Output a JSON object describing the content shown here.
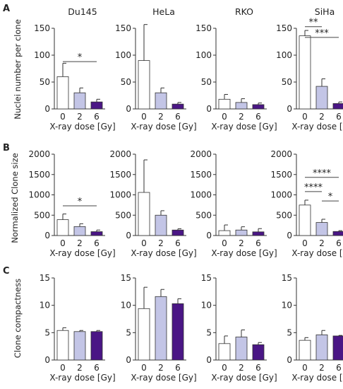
{
  "panel_letters": [
    "A",
    "B",
    "C"
  ],
  "colors": {
    "dose0": "#ffffff",
    "dose2": "#c3c5e6",
    "dose6": "#4a1685",
    "stroke": "#333333",
    "sig_line": "#444444"
  },
  "chart_data": [
    {
      "panel": "A",
      "type": "bar",
      "ylabel": "Nuclei number per clone",
      "ylim": [
        0,
        150
      ],
      "yticks": [
        0,
        50,
        100,
        150
      ],
      "xlabel": "X-ray dose [Gy]",
      "categories": [
        "0",
        "2",
        "6"
      ],
      "cells": [
        {
          "title": "Du145",
          "values": [
            60,
            30,
            13
          ],
          "errors": [
            25,
            9,
            5
          ],
          "significance": [
            {
              "from": 0,
              "to": 2,
              "label": "*",
              "y": 88
            }
          ]
        },
        {
          "title": "HeLa",
          "values": [
            90,
            30,
            9
          ],
          "errors": [
            67,
            9,
            3
          ],
          "significance": []
        },
        {
          "title": "RKO",
          "values": [
            18,
            12,
            8
          ],
          "errors": [
            9,
            7,
            3
          ],
          "significance": []
        },
        {
          "title": "SiHa",
          "values": [
            136,
            42,
            10
          ],
          "errors": [
            10,
            14,
            3
          ],
          "significance": [
            {
              "from": 0,
              "to": 1,
              "label": "**",
              "y": 153
            },
            {
              "from": 0,
              "to": 2,
              "label": "***",
              "y": 133
            }
          ]
        }
      ]
    },
    {
      "panel": "B",
      "type": "bar",
      "ylabel": "Normalized Clone size",
      "ylim": [
        0,
        2000
      ],
      "yticks": [
        0,
        500,
        1000,
        1500,
        2000
      ],
      "xlabel": "X-ray dose [Gy]",
      "categories": [
        "0",
        "2",
        "6"
      ],
      "cells": [
        {
          "title": "",
          "values": [
            390,
            220,
            95
          ],
          "errors": [
            140,
            70,
            40
          ],
          "significance": [
            {
              "from": 0,
              "to": 2,
              "label": "*",
              "y": 730
            }
          ]
        },
        {
          "title": "",
          "values": [
            1060,
            500,
            135
          ],
          "errors": [
            800,
            110,
            30
          ],
          "significance": []
        },
        {
          "title": "",
          "values": [
            120,
            135,
            90
          ],
          "errors": [
            140,
            80,
            80
          ],
          "significance": []
        },
        {
          "title": "",
          "values": [
            750,
            320,
            100
          ],
          "errors": [
            120,
            80,
            20
          ],
          "significance": [
            {
              "from": 0,
              "to": 2,
              "label": "****",
              "y": 1430
            },
            {
              "from": 0,
              "to": 1,
              "label": "****",
              "y": 1080
            },
            {
              "from": 1,
              "to": 2,
              "label": "*",
              "y": 850
            }
          ]
        }
      ]
    },
    {
      "panel": "C",
      "type": "bar",
      "ylabel": "Clone compactness",
      "ylim": [
        0,
        15
      ],
      "yticks": [
        0,
        5,
        10,
        15
      ],
      "xlabel": "X-ray dose [Gy]",
      "categories": [
        "0",
        "2",
        "6"
      ],
      "cells": [
        {
          "title": "",
          "values": [
            5.4,
            5.2,
            5.2
          ],
          "errors": [
            0.5,
            0.2,
            0.2
          ],
          "significance": []
        },
        {
          "title": "",
          "values": [
            9.4,
            11.6,
            10.3
          ],
          "errors": [
            3.9,
            1.3,
            0.9
          ],
          "significance": []
        },
        {
          "title": "",
          "values": [
            3.0,
            4.2,
            2.8
          ],
          "errors": [
            1.4,
            1.3,
            0.4
          ],
          "significance": []
        },
        {
          "title": "",
          "values": [
            3.6,
            4.6,
            4.4
          ],
          "errors": [
            0.5,
            0.8,
            0.1
          ],
          "significance": []
        }
      ]
    }
  ]
}
